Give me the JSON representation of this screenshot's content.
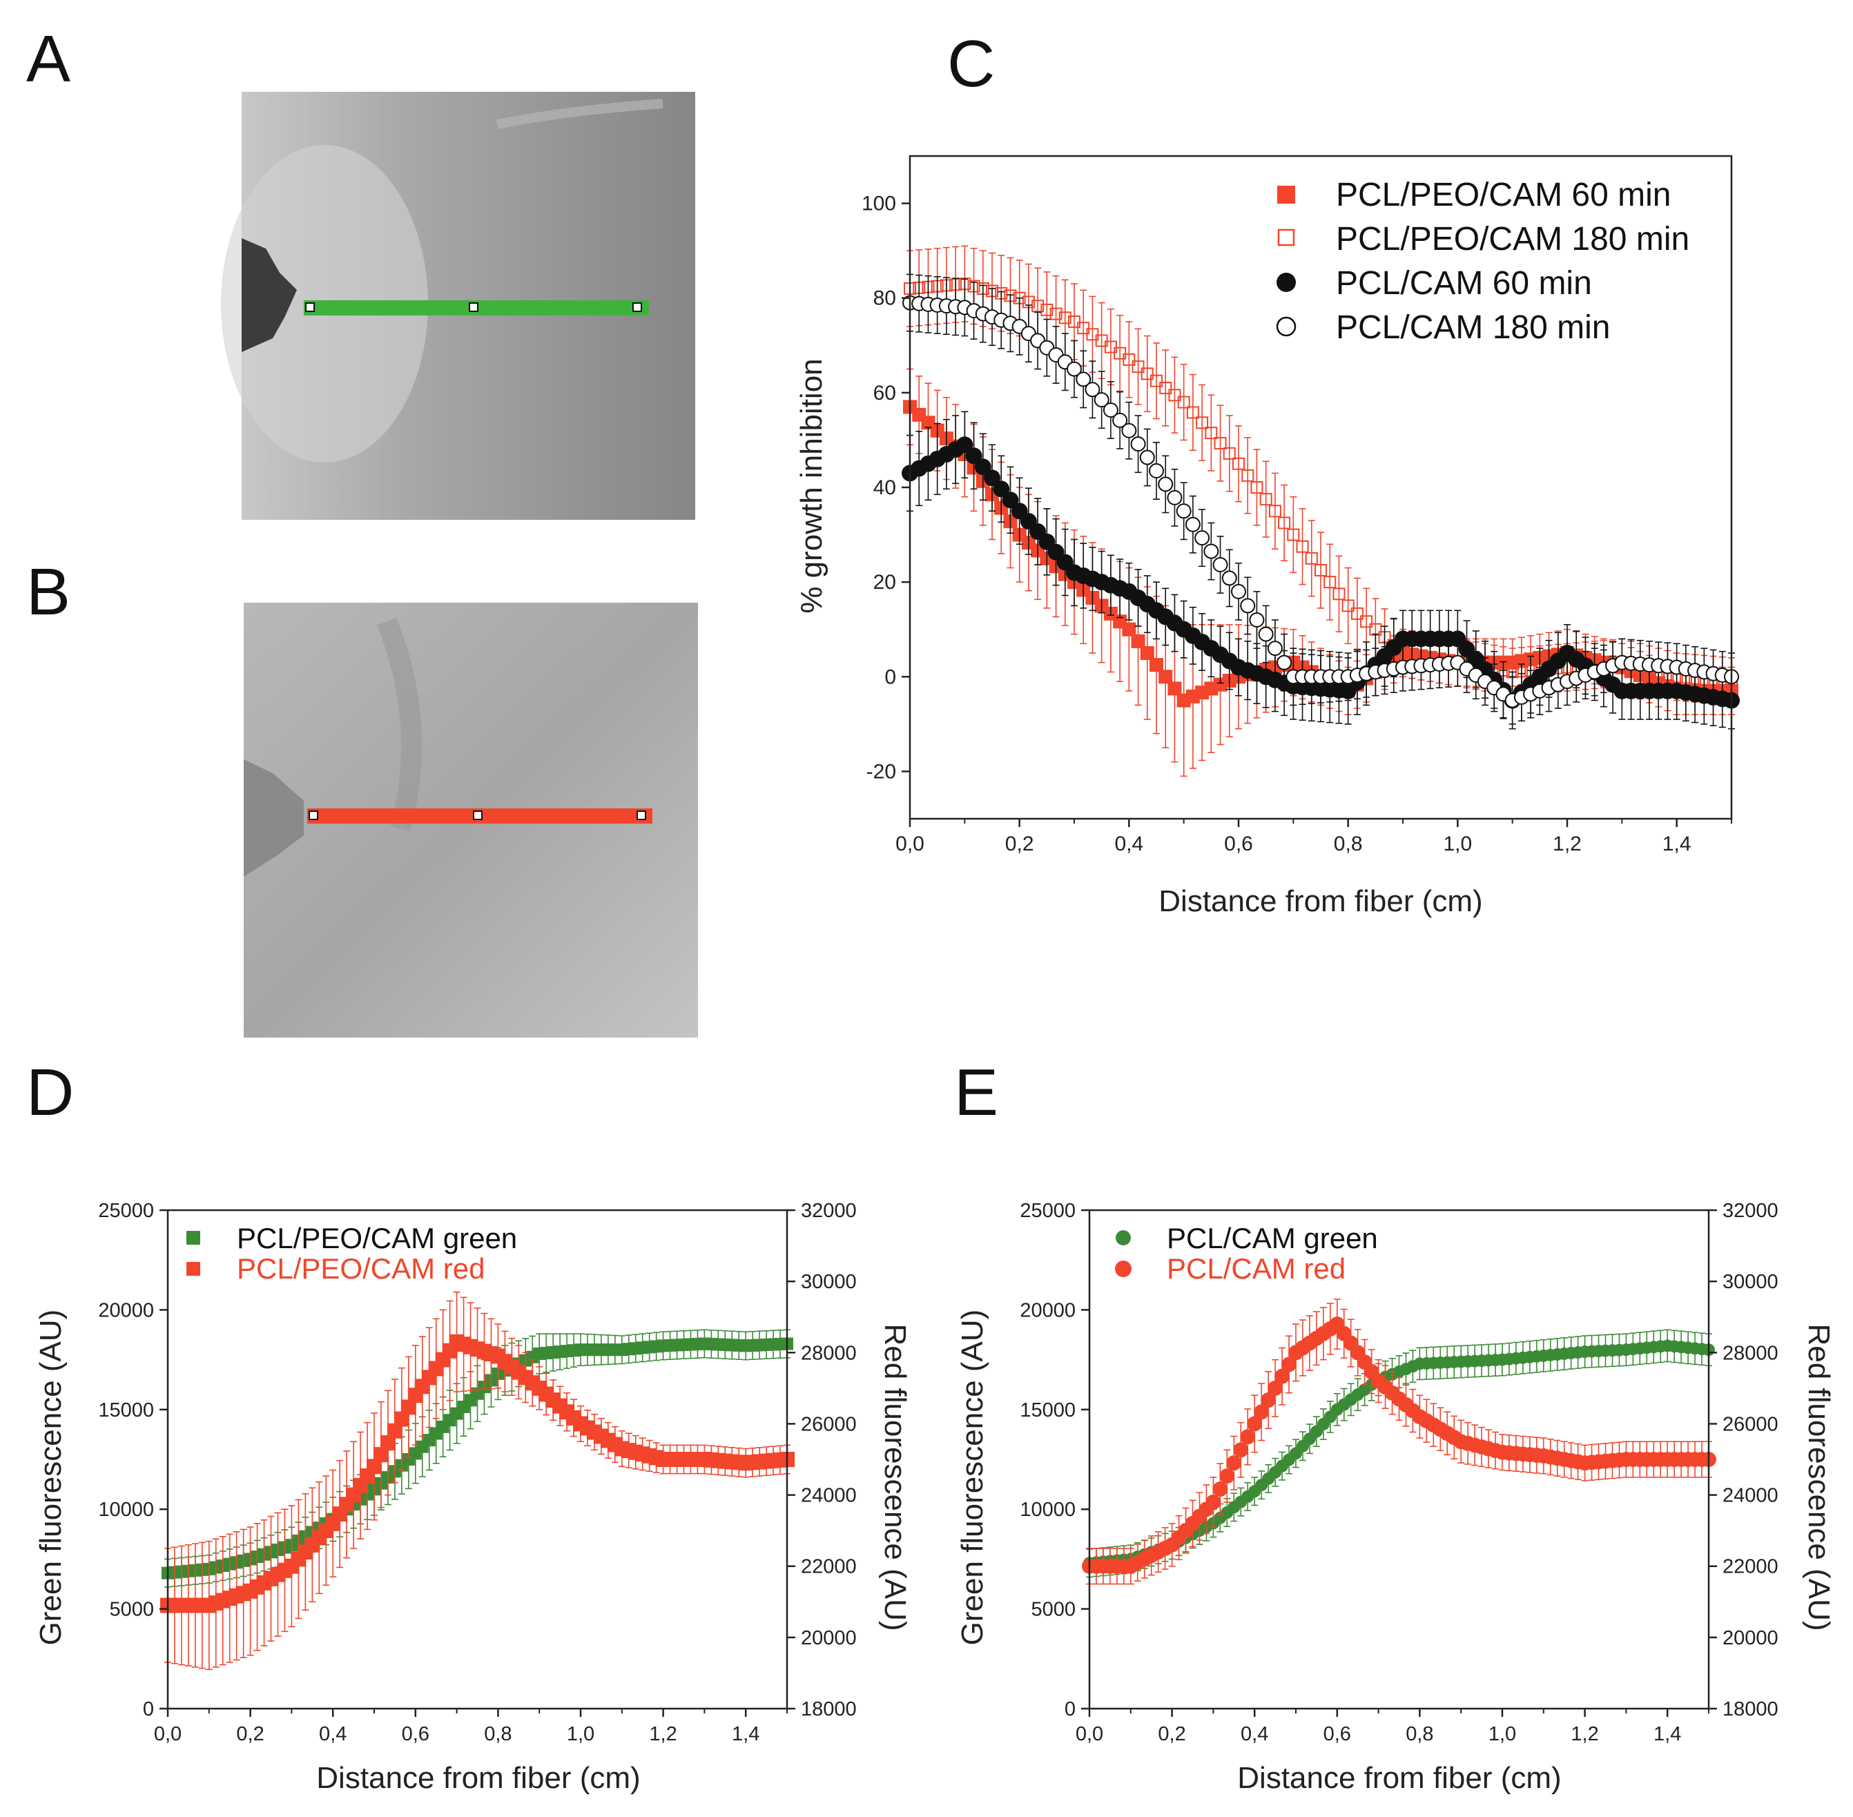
{
  "panel_labels": [
    "A",
    "B",
    "C",
    "D",
    "E"
  ],
  "colors": {
    "red": "#f2452b",
    "green": "#3b8a35",
    "line_green": "#3fb23b",
    "line_red": "#f2452b",
    "black": "#111111"
  },
  "chart_data": [
    {
      "panel": "C",
      "type": "scatter",
      "xlabel": "Distance from fiber (cm)",
      "ylabel": "% growth inhibition",
      "xlim": [
        0,
        1.5
      ],
      "ylim": [
        -30,
        110
      ],
      "xticks": [
        "0,0",
        "0,2",
        "0,4",
        "0,6",
        "0,8",
        "1,0",
        "1,2",
        "1,4"
      ],
      "yticks": [
        "-20",
        "0",
        "20",
        "40",
        "60",
        "80",
        "100"
      ],
      "legend_position": "top-right",
      "series": [
        {
          "name": "PCL/PEO/CAM 60 min",
          "marker": "square-filled",
          "x": [
            0.0,
            0.1,
            0.2,
            0.3,
            0.4,
            0.5,
            0.6,
            0.7,
            0.8,
            0.9,
            1.0,
            1.1,
            1.2,
            1.3,
            1.4,
            1.5
          ],
          "y": [
            57,
            47,
            30,
            20,
            10,
            -5,
            0,
            3,
            -3,
            5,
            3,
            3,
            5,
            2,
            -3,
            -3
          ],
          "err": [
            8,
            9,
            10,
            11,
            13,
            16,
            11,
            7,
            5,
            5,
            5,
            5,
            5,
            5,
            5,
            5
          ]
        },
        {
          "name": "PCL/PEO/CAM 180 min",
          "marker": "square-open",
          "x": [
            0.0,
            0.1,
            0.2,
            0.3,
            0.4,
            0.5,
            0.6,
            0.7,
            0.8,
            0.9,
            1.0,
            1.1,
            1.2,
            1.3,
            1.4,
            1.5
          ],
          "y": [
            82,
            83,
            80,
            75,
            67,
            58,
            45,
            30,
            15,
            5,
            3,
            1,
            2,
            3,
            0,
            -1
          ],
          "err": [
            8,
            8,
            8,
            8,
            8,
            8,
            8,
            8,
            8,
            5,
            5,
            5,
            5,
            5,
            5,
            5
          ]
        },
        {
          "name": "PCL/CAM 60 min",
          "marker": "circle-filled",
          "x": [
            0.0,
            0.1,
            0.2,
            0.3,
            0.4,
            0.5,
            0.6,
            0.7,
            0.8,
            0.9,
            1.0,
            1.1,
            1.2,
            1.3,
            1.4,
            1.5
          ],
          "y": [
            43,
            49,
            35,
            22,
            18,
            10,
            2,
            -2,
            -3,
            8,
            8,
            -5,
            5,
            -3,
            -3,
            -5
          ],
          "err": [
            8,
            7,
            7,
            7,
            6,
            6,
            6,
            7,
            7,
            6,
            6,
            6,
            6,
            6,
            6,
            6
          ]
        },
        {
          "name": "PCL/CAM 180 min",
          "marker": "circle-open",
          "x": [
            0.0,
            0.1,
            0.2,
            0.3,
            0.4,
            0.5,
            0.6,
            0.7,
            0.8,
            0.9,
            1.0,
            1.1,
            1.2,
            1.3,
            1.4,
            1.5
          ],
          "y": [
            79,
            78,
            74,
            65,
            52,
            35,
            18,
            0,
            0,
            2,
            3,
            -5,
            -1,
            3,
            2,
            0
          ],
          "err": [
            6,
            6,
            6,
            6,
            6,
            6,
            6,
            6,
            5,
            5,
            5,
            5,
            5,
            5,
            5,
            5
          ]
        }
      ]
    },
    {
      "panel": "D",
      "type": "scatter",
      "xlabel": "Distance from fiber (cm)",
      "ylabel": "Green fluorescence (AU)",
      "ylabel_right": "Red fluorescence (AU)",
      "xlim": [
        0,
        1.5
      ],
      "ylim": [
        0,
        25000
      ],
      "ylim_right": [
        18000,
        32000
      ],
      "xticks": [
        "0,0",
        "0,2",
        "0,4",
        "0,6",
        "0,8",
        "1,0",
        "1,2",
        "1,4"
      ],
      "yticks": [
        "0",
        "5000",
        "10000",
        "15000",
        "20000",
        "25000"
      ],
      "yticks_right": [
        "18000",
        "20000",
        "22000",
        "24000",
        "26000",
        "28000",
        "30000",
        "32000"
      ],
      "legend_position": "top-left",
      "series": [
        {
          "name": "PCL/PEO/CAM green",
          "axis": "left",
          "marker": "square",
          "x": [
            0.0,
            0.1,
            0.2,
            0.3,
            0.4,
            0.5,
            0.6,
            0.7,
            0.8,
            0.9,
            1.0,
            1.1,
            1.2,
            1.3,
            1.4,
            1.5
          ],
          "y": [
            6800,
            7000,
            7500,
            8200,
            9500,
            11000,
            12800,
            14800,
            16800,
            17800,
            18000,
            18000,
            18200,
            18300,
            18200,
            18300
          ],
          "err": [
            700,
            700,
            800,
            900,
            1100,
            1300,
            1500,
            1500,
            1300,
            1000,
            800,
            700,
            700,
            700,
            700,
            700
          ]
        },
        {
          "name": "PCL/PEO/CAM red",
          "axis": "right",
          "marker": "square",
          "x": [
            0.0,
            0.1,
            0.2,
            0.3,
            0.4,
            0.5,
            0.6,
            0.7,
            0.8,
            0.9,
            1.0,
            1.1,
            1.2,
            1.3,
            1.4,
            1.5
          ],
          "y": [
            20900,
            20900,
            21300,
            22000,
            23200,
            24800,
            26800,
            28300,
            27900,
            27000,
            26000,
            25300,
            25000,
            25000,
            24900,
            25000
          ],
          "err": [
            1600,
            1800,
            1800,
            1700,
            1500,
            1500,
            1400,
            1400,
            900,
            600,
            500,
            500,
            400,
            400,
            400,
            400
          ]
        }
      ]
    },
    {
      "panel": "E",
      "type": "scatter",
      "xlabel": "Distance from fiber (cm)",
      "ylabel": "Green fluorescence (AU)",
      "ylabel_right": "Red fluorescence (AU)",
      "xlim": [
        0,
        1.5
      ],
      "ylim": [
        0,
        25000
      ],
      "ylim_right": [
        18000,
        32000
      ],
      "xticks": [
        "0,0",
        "0,2",
        "0,4",
        "0,6",
        "0,8",
        "1,0",
        "1,2",
        "1,4"
      ],
      "yticks": [
        "0",
        "5000",
        "10000",
        "15000",
        "20000",
        "25000"
      ],
      "yticks_right": [
        "18000",
        "20000",
        "22000",
        "24000",
        "26000",
        "28000",
        "30000",
        "32000"
      ],
      "legend_position": "top-left",
      "series": [
        {
          "name": "PCL/CAM green",
          "axis": "left",
          "marker": "circle",
          "x": [
            0.0,
            0.1,
            0.2,
            0.3,
            0.4,
            0.5,
            0.6,
            0.7,
            0.8,
            0.9,
            1.0,
            1.1,
            1.2,
            1.3,
            1.4,
            1.5
          ],
          "y": [
            7300,
            7500,
            8200,
            9300,
            10900,
            12800,
            15000,
            16500,
            17300,
            17400,
            17500,
            17700,
            17900,
            18000,
            18200,
            18000
          ],
          "err": [
            700,
            700,
            700,
            700,
            700,
            700,
            800,
            800,
            800,
            800,
            800,
            800,
            800,
            800,
            800,
            800
          ]
        },
        {
          "name": "PCL/CAM red",
          "axis": "right",
          "marker": "circle",
          "x": [
            0.0,
            0.1,
            0.2,
            0.3,
            0.4,
            0.5,
            0.6,
            0.7,
            0.8,
            0.9,
            1.0,
            1.1,
            1.2,
            1.3,
            1.4,
            1.5
          ],
          "y": [
            22000,
            22000,
            22600,
            23800,
            26000,
            28000,
            28800,
            27200,
            26200,
            25500,
            25200,
            25100,
            24900,
            25000,
            25000,
            25000
          ],
          "err": [
            500,
            500,
            600,
            700,
            800,
            800,
            700,
            600,
            600,
            600,
            500,
            500,
            500,
            500,
            500,
            500
          ]
        }
      ]
    }
  ]
}
